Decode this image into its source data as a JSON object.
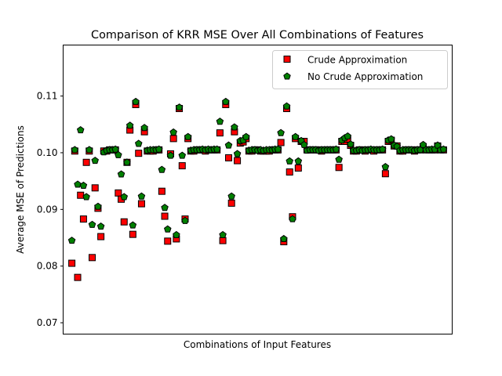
{
  "chart_data": {
    "type": "scatter",
    "title": "Comparison of KRR MSE Over All Combinations of Features",
    "xlabel": "Combinations of Input Features",
    "ylabel": "Average MSE of Predictions",
    "x_ticks_shown": false,
    "xlim": [
      -3,
      131
    ],
    "ylim": [
      0.068,
      0.119
    ],
    "yticks": [
      0.07,
      0.08,
      0.09,
      0.1,
      0.11
    ],
    "ytick_labels": [
      "0.07",
      "0.08",
      "0.09",
      "0.10",
      "0.11"
    ],
    "grid": false,
    "legend_position": "top-right",
    "colors": {
      "crude": "#ff0000",
      "no_crude": "#008000",
      "edge": "#000000"
    },
    "series": [
      {
        "name": "Crude Approximation",
        "marker": "square",
        "color": "#ff0000",
        "x": [
          0,
          1,
          2,
          3,
          4,
          5,
          6,
          7,
          8,
          9,
          10,
          11,
          12,
          13,
          14,
          15,
          16,
          17,
          18,
          19,
          20,
          21,
          22,
          23,
          24,
          25,
          26,
          27,
          28,
          29,
          30,
          31,
          32,
          33,
          34,
          35,
          36,
          37,
          38,
          39,
          40,
          41,
          42,
          43,
          44,
          45,
          46,
          47,
          48,
          49,
          50,
          51,
          52,
          53,
          54,
          55,
          56,
          57,
          58,
          59,
          60,
          61,
          62,
          63,
          64,
          65,
          66,
          67,
          68,
          69,
          70,
          71,
          72,
          73,
          74,
          75,
          76,
          77,
          78,
          79,
          80,
          81,
          82,
          83,
          84,
          85,
          86,
          87,
          88,
          89,
          90,
          91,
          92,
          93,
          94,
          95,
          96,
          97,
          98,
          99,
          100,
          101,
          102,
          103,
          104,
          105,
          106,
          107,
          108,
          109,
          110,
          111,
          112,
          113,
          114,
          115,
          116,
          117,
          118,
          119,
          120,
          121,
          122,
          123,
          124,
          125,
          126,
          127,
          128
        ],
        "values": [
          0.0805,
          0.1003,
          0.078,
          0.0925,
          0.0883,
          0.0983,
          0.1003,
          0.0815,
          0.0938,
          0.0902,
          0.0852,
          0.1003,
          0.1003,
          0.1005,
          0.1005,
          0.1005,
          0.0929,
          0.0918,
          0.0878,
          0.0983,
          0.104,
          0.0856,
          0.1085,
          0.0999,
          0.091,
          0.1037,
          0.1003,
          0.1003,
          0.1003,
          0.1005,
          0.1005,
          0.0932,
          0.0888,
          0.0844,
          0.0998,
          0.1025,
          0.0848,
          0.1078,
          0.0977,
          0.0883,
          0.1025,
          0.1003,
          0.1003,
          0.1005,
          0.1005,
          0.1005,
          0.1003,
          0.1005,
          0.1005,
          0.1005,
          0.1005,
          0.1035,
          0.0845,
          0.1085,
          0.0991,
          0.0911,
          0.1037,
          0.0986,
          0.1017,
          0.1019,
          0.1025,
          0.1003,
          0.1003,
          0.1005,
          0.1005,
          0.1003,
          0.1003,
          0.1003,
          0.1003,
          0.1005,
          0.1005,
          0.1005,
          0.1018,
          0.0843,
          0.1078,
          0.0966,
          0.0887,
          0.1025,
          0.0973,
          0.102,
          0.102,
          0.1005,
          0.1005,
          0.1005,
          0.1005,
          0.1005,
          0.1003,
          0.1005,
          0.1005,
          0.1005,
          0.1005,
          0.1005,
          0.0974,
          0.102,
          0.102,
          0.1024,
          0.1013,
          0.1003,
          0.1003,
          0.1005,
          0.1005,
          0.1003,
          0.1005,
          0.1005,
          0.1003,
          0.1005,
          0.1005,
          0.1005,
          0.0963,
          0.102,
          0.1022,
          0.1012,
          0.1012,
          0.1003,
          0.1003,
          0.1005,
          0.1005,
          0.1005,
          0.1003,
          0.1005,
          0.1005,
          0.101,
          0.1005,
          0.1005,
          0.1005,
          0.1005,
          0.1012,
          0.1005,
          0.1005
        ]
      },
      {
        "name": "No Crude Approximation",
        "marker": "pentagon",
        "color": "#008000",
        "x": [
          0,
          1,
          2,
          3,
          4,
          5,
          6,
          7,
          8,
          9,
          10,
          11,
          12,
          13,
          14,
          15,
          16,
          17,
          18,
          19,
          20,
          21,
          22,
          23,
          24,
          25,
          26,
          27,
          28,
          29,
          30,
          31,
          32,
          33,
          34,
          35,
          36,
          37,
          38,
          39,
          40,
          41,
          42,
          43,
          44,
          45,
          46,
          47,
          48,
          49,
          50,
          51,
          52,
          53,
          54,
          55,
          56,
          57,
          58,
          59,
          60,
          61,
          62,
          63,
          64,
          65,
          66,
          67,
          68,
          69,
          70,
          71,
          72,
          73,
          74,
          75,
          76,
          77,
          78,
          79,
          80,
          81,
          82,
          83,
          84,
          85,
          86,
          87,
          88,
          89,
          90,
          91,
          92,
          93,
          94,
          95,
          96,
          97,
          98,
          99,
          100,
          101,
          102,
          103,
          104,
          105,
          106,
          107,
          108,
          109,
          110,
          111,
          112,
          113,
          114,
          115,
          116,
          117,
          118,
          119,
          120,
          121,
          122,
          123,
          124,
          125,
          126,
          127,
          128
        ],
        "values": [
          0.0845,
          0.1005,
          0.0944,
          0.104,
          0.0942,
          0.0922,
          0.1005,
          0.0873,
          0.0986,
          0.0905,
          0.087,
          0.1001,
          0.1004,
          0.1005,
          0.1005,
          0.1006,
          0.0996,
          0.0962,
          0.0922,
          0.0983,
          0.1048,
          0.0872,
          0.109,
          0.1016,
          0.0923,
          0.1044,
          0.1004,
          0.1005,
          0.1005,
          0.1005,
          0.1006,
          0.097,
          0.0903,
          0.0865,
          0.0995,
          0.1036,
          0.0855,
          0.108,
          0.0995,
          0.088,
          0.1028,
          0.1004,
          0.1005,
          0.1005,
          0.1005,
          0.1006,
          0.1005,
          0.1006,
          0.1005,
          0.1006,
          0.1006,
          0.1055,
          0.0855,
          0.109,
          0.1013,
          0.0923,
          0.1045,
          0.0998,
          0.1021,
          0.1022,
          0.1028,
          0.1004,
          0.1005,
          0.1005,
          0.1004,
          0.1005,
          0.1004,
          0.1005,
          0.1005,
          0.1005,
          0.1006,
          0.1006,
          0.1035,
          0.0848,
          0.1082,
          0.0985,
          0.0883,
          0.1028,
          0.0985,
          0.1021,
          0.1014,
          0.1004,
          0.1005,
          0.1005,
          0.1005,
          0.1004,
          0.1005,
          0.1005,
          0.1005,
          0.1005,
          0.1005,
          0.1006,
          0.0988,
          0.1022,
          0.1026,
          0.1029,
          0.1015,
          0.1004,
          0.1004,
          0.1005,
          0.1004,
          0.1005,
          0.1005,
          0.1006,
          0.1005,
          0.1005,
          0.1005,
          0.1006,
          0.0975,
          0.1022,
          0.1024,
          0.1013,
          0.1011,
          0.1004,
          0.1005,
          0.1005,
          0.1005,
          0.1005,
          0.1004,
          0.1005,
          0.1005,
          0.1014,
          0.1005,
          0.1005,
          0.1006,
          0.1006,
          0.1013,
          0.1005,
          0.1006
        ]
      }
    ]
  }
}
